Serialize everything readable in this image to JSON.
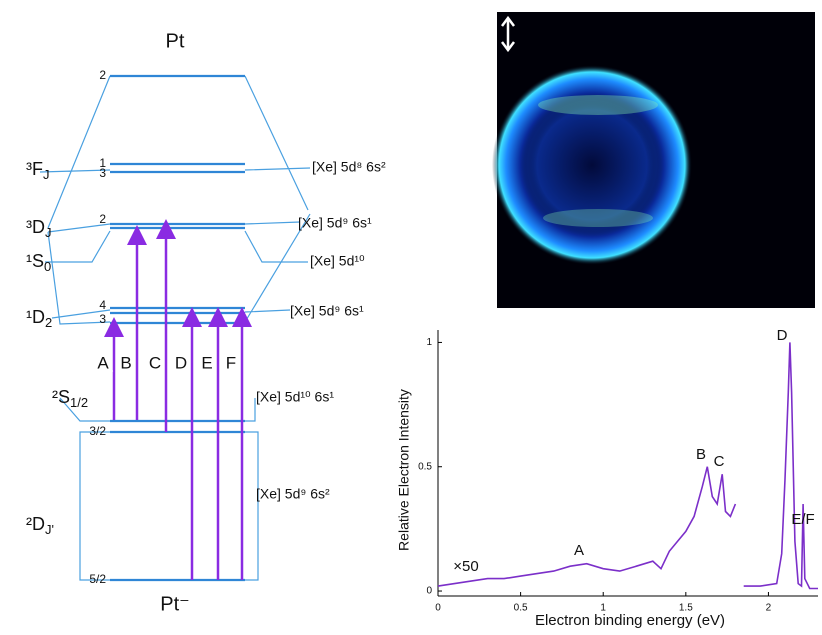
{
  "diagram": {
    "top_label": "Pt",
    "bottom_label": "Pt⁻",
    "levels": [
      "2",
      "1",
      "3",
      "2",
      "4",
      "3",
      "3/2",
      "5/2"
    ],
    "terms": [
      {
        "main": "³F",
        "sub": "J"
      },
      {
        "main": "³D",
        "sub": "J"
      },
      {
        "main": "¹S",
        "sub": "0"
      },
      {
        "main": "¹D",
        "sub": "2"
      },
      {
        "main": "²S",
        "sub": "1/2"
      },
      {
        "main": "²D",
        "sub": "J'"
      }
    ],
    "configurations": [
      "[Xe] 5d⁸ 6s²",
      "[Xe] 5d⁹ 6s¹",
      "[Xe] 5d¹⁰",
      "[Xe] 5d⁹ 6s¹",
      "[Xe] 5d¹⁰ 6s¹",
      "[Xe] 5d⁹ 6s²"
    ],
    "transitions": [
      "A",
      "B",
      "C",
      "D",
      "E",
      "F"
    ]
  },
  "chart_data": {
    "type": "line",
    "xlabel": "Electron binding energy (eV)",
    "ylabel": "Relative Electron Intensity",
    "annotations": [
      "×50",
      "A",
      "B",
      "C",
      "D",
      "E/F"
    ],
    "color": "#7b2fc9",
    "x": [
      0,
      0.1,
      0.2,
      0.3,
      0.4,
      0.5,
      0.6,
      0.7,
      0.8,
      0.9,
      1.0,
      1.1,
      1.2,
      1.3,
      1.35,
      1.4,
      1.45,
      1.5,
      1.55,
      1.6,
      1.63,
      1.66,
      1.69,
      1.72,
      1.74,
      1.77,
      1.8,
      1.8,
      1.85,
      1.95,
      2.05,
      2.08,
      2.1,
      2.12,
      2.13,
      2.14,
      2.16,
      2.18,
      2.2,
      2.21,
      2.22,
      2.25,
      2.3
    ],
    "values": [
      0.02,
      0.03,
      0.04,
      0.05,
      0.05,
      0.06,
      0.07,
      0.08,
      0.1,
      0.11,
      0.09,
      0.08,
      0.1,
      0.12,
      0.09,
      0.16,
      0.2,
      0.24,
      0.3,
      0.42,
      0.5,
      0.38,
      0.35,
      0.47,
      0.32,
      0.3,
      0.35,
      null,
      0.02,
      0.02,
      0.03,
      0.15,
      0.45,
      0.8,
      1.0,
      0.8,
      0.2,
      0.03,
      0.02,
      0.35,
      0.05,
      0.01,
      0.01
    ],
    "xlim": [
      0,
      2.3
    ],
    "ylim": [
      -0.02,
      1.05
    ],
    "xticks": [
      0,
      0.5,
      1,
      1.5,
      2
    ],
    "yticks": [
      0,
      0.5,
      1
    ]
  }
}
